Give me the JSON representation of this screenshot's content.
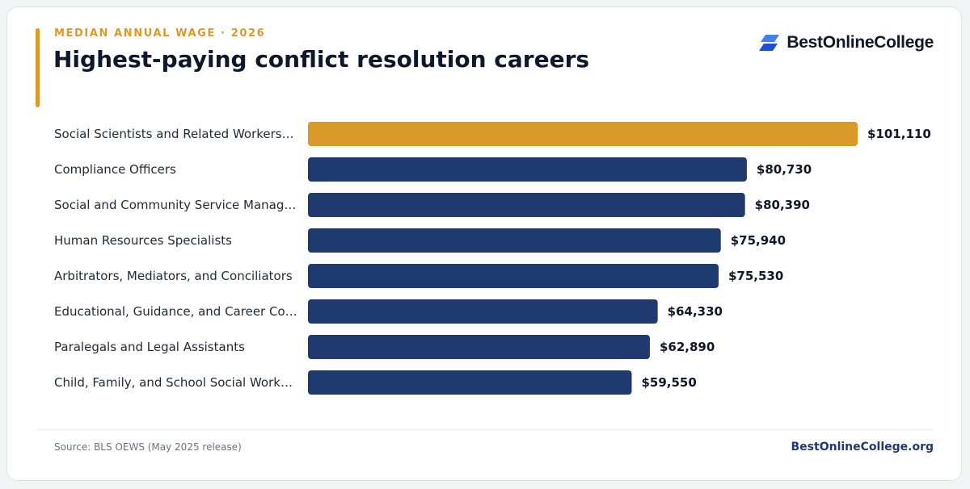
{
  "header": {
    "eyebrow": "MEDIAN ANNUAL WAGE · 2026",
    "title": "Highest-paying conflict resolution careers"
  },
  "brand": {
    "name": "BestOnlineCollege",
    "icon": "stacked-parallelogram-logo-icon"
  },
  "footer": {
    "source": "Source: BLS OEWS (May 2025 release)",
    "site": "BestOnlineCollege.org"
  },
  "colors": {
    "highlight": "#da9a27",
    "bar": "#1e3a6e",
    "label": "#1f2937",
    "value": "#0f172a",
    "logo_light": "#3b82f6",
    "logo_dark": "#1d4ed8"
  },
  "chart_data": {
    "type": "bar",
    "orientation": "horizontal",
    "title": "Highest-paying conflict resolution careers",
    "categories": [
      "Social Scientists and Related Workers…",
      "Compliance Officers",
      "Social and Community Service Manag…",
      "Human Resources Specialists",
      "Arbitrators, Mediators, and Conciliators",
      "Educational, Guidance, and Career Co…",
      "Paralegals and Legal Assistants",
      "Child, Family, and School Social Work…"
    ],
    "values": [
      101110,
      80730,
      80390,
      75940,
      75530,
      64330,
      62890,
      59550
    ],
    "value_labels": [
      "$101,110",
      "$80,730",
      "$80,390",
      "$75,940",
      "$75,530",
      "$64,330",
      "$62,890",
      "$59,550"
    ],
    "highlight_index": 0,
    "xlim": [
      0,
      101110
    ],
    "grid": false,
    "legend": "none"
  }
}
